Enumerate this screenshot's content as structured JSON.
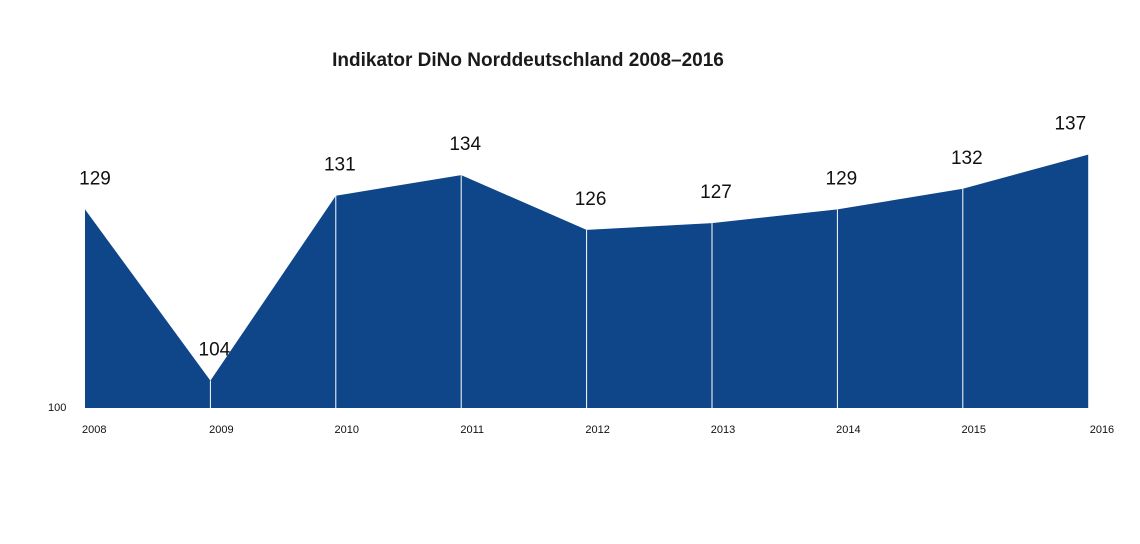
{
  "chart_data": {
    "type": "area",
    "title": "Indikator DiNo Norddeutschland 2008–2016",
    "categories": [
      "2008",
      "2009",
      "2010",
      "2011",
      "2012",
      "2013",
      "2014",
      "2015",
      "2016"
    ],
    "values": [
      129,
      104,
      131,
      134,
      126,
      127,
      129,
      132,
      137
    ],
    "data_labels": [
      "129",
      "104",
      "131",
      "134",
      "126",
      "127",
      "129",
      "132",
      "137"
    ],
    "baseline_label": "100",
    "ylim": [
      100,
      137
    ],
    "xlabel": "",
    "ylabel": "",
    "grid": false,
    "legend": "none",
    "colors": {
      "fill": "#0f4589",
      "separator": "#ffffff",
      "text": "#111111"
    }
  }
}
